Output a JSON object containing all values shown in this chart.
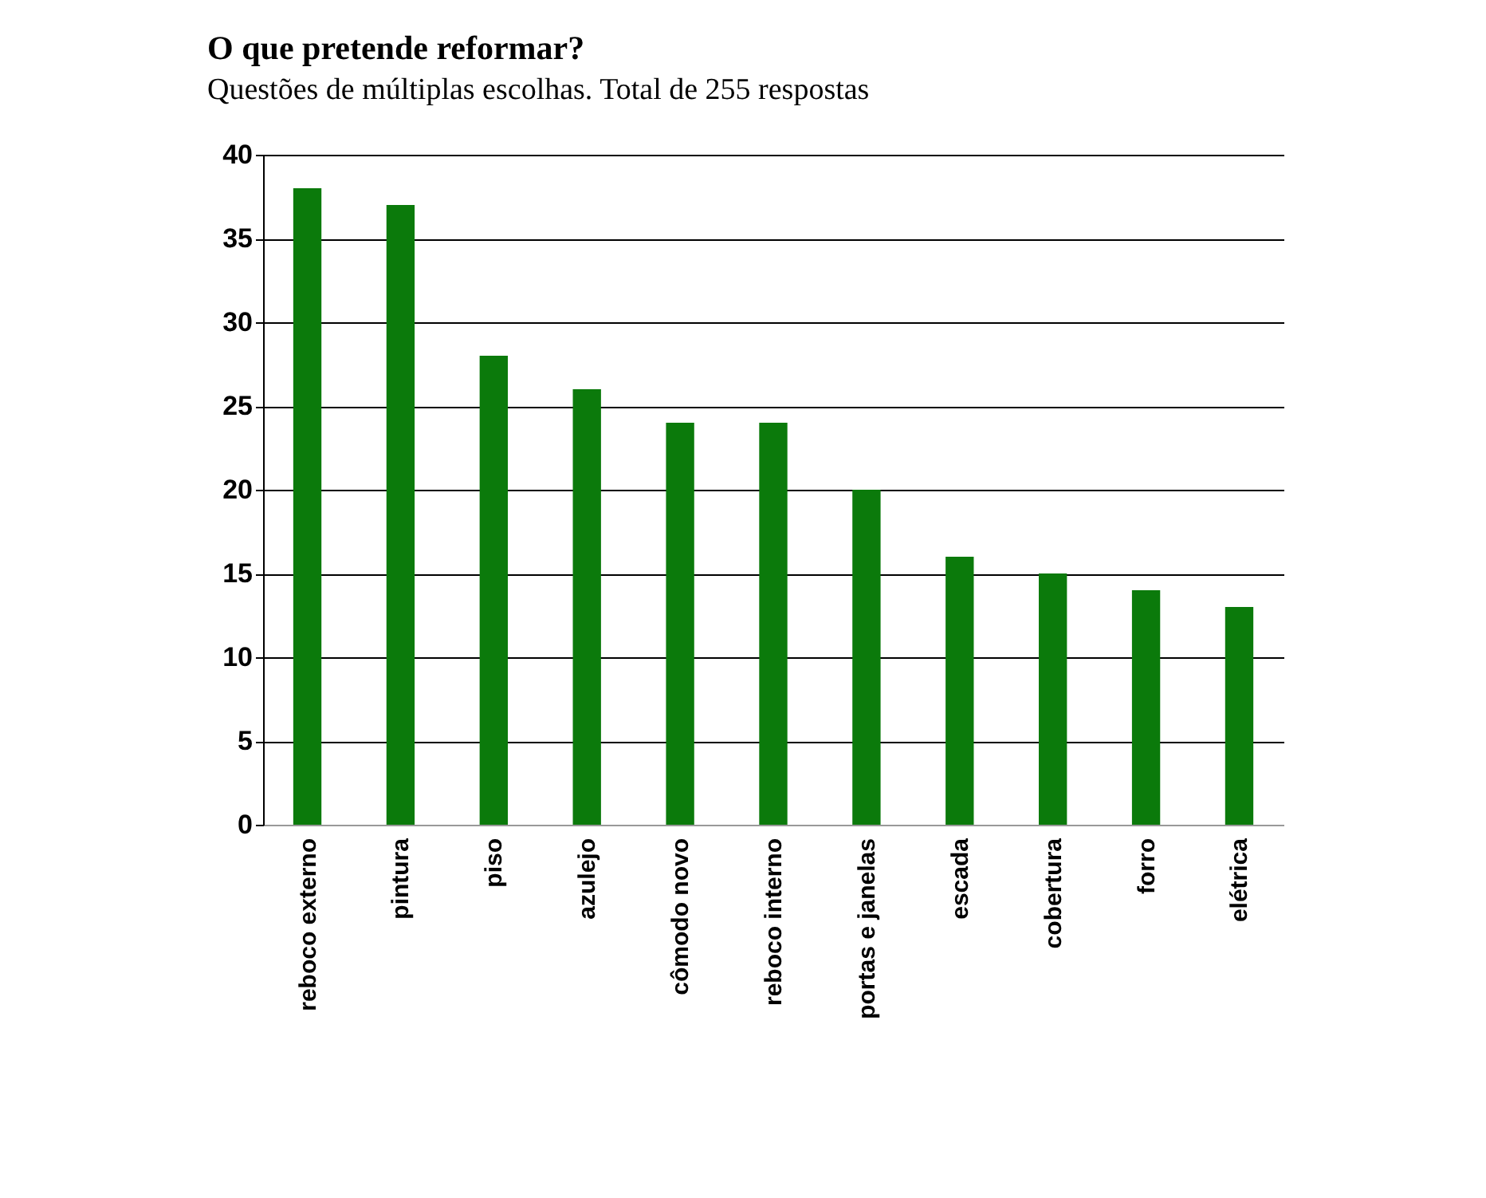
{
  "chart_data": {
    "type": "bar",
    "title": "O que pretende reformar?",
    "subtitle": "Questões de múltiplas escolhas. Total de 255 respostas",
    "categories": [
      "reboco externo",
      "pintura",
      "piso",
      "azulejo",
      "cômodo novo",
      "reboco interno",
      "portas e janelas",
      "escada",
      "cobertura",
      "forro",
      "elétrica"
    ],
    "values": [
      38,
      37,
      28,
      26,
      24,
      24,
      20,
      16,
      15,
      14,
      13
    ],
    "color": "#0b7a0b",
    "ylim": [
      0,
      40
    ],
    "yticks": [
      0,
      5,
      10,
      15,
      20,
      25,
      30,
      35,
      40
    ],
    "grid": "y"
  }
}
